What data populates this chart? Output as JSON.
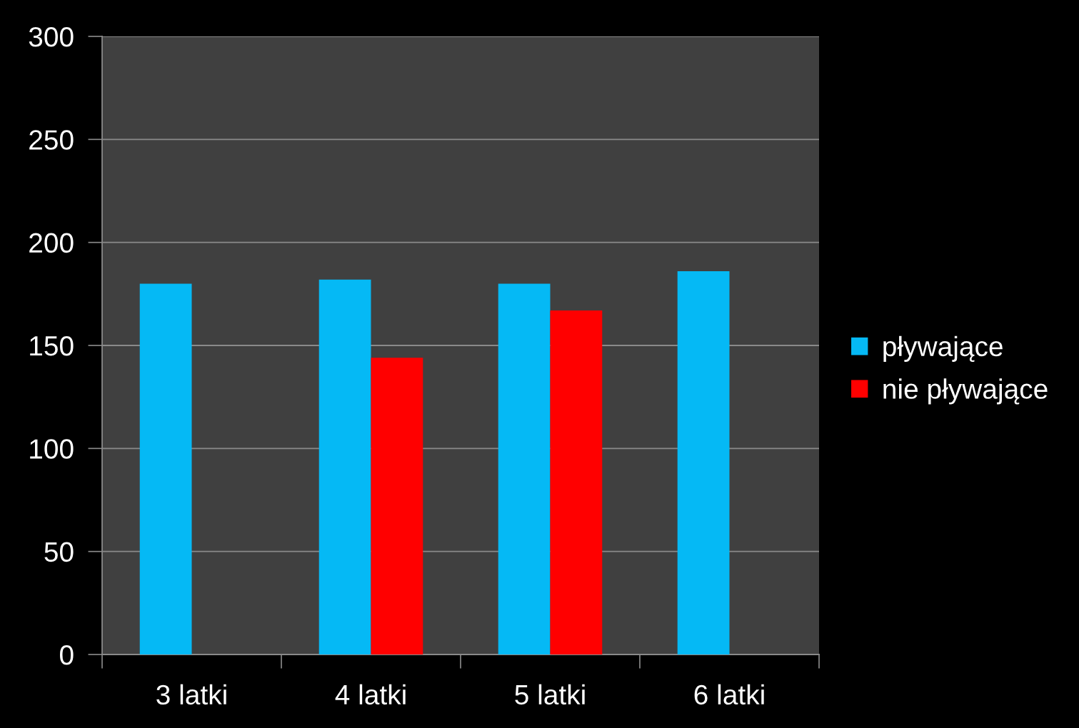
{
  "chart_data": {
    "type": "bar",
    "categories": [
      "3 latki",
      "4 latki",
      "5 latki",
      "6 latki"
    ],
    "series": [
      {
        "name": "pływające",
        "color": "#05b9f5",
        "values": [
          180,
          182,
          180,
          186
        ]
      },
      {
        "name": "nie pływające",
        "color": "#ff0000",
        "values": [
          null,
          144,
          167,
          null
        ]
      }
    ],
    "ylim": [
      0,
      300
    ],
    "yticks": [
      0,
      50,
      100,
      150,
      200,
      250,
      300
    ],
    "grid": "y",
    "legend": "right"
  }
}
